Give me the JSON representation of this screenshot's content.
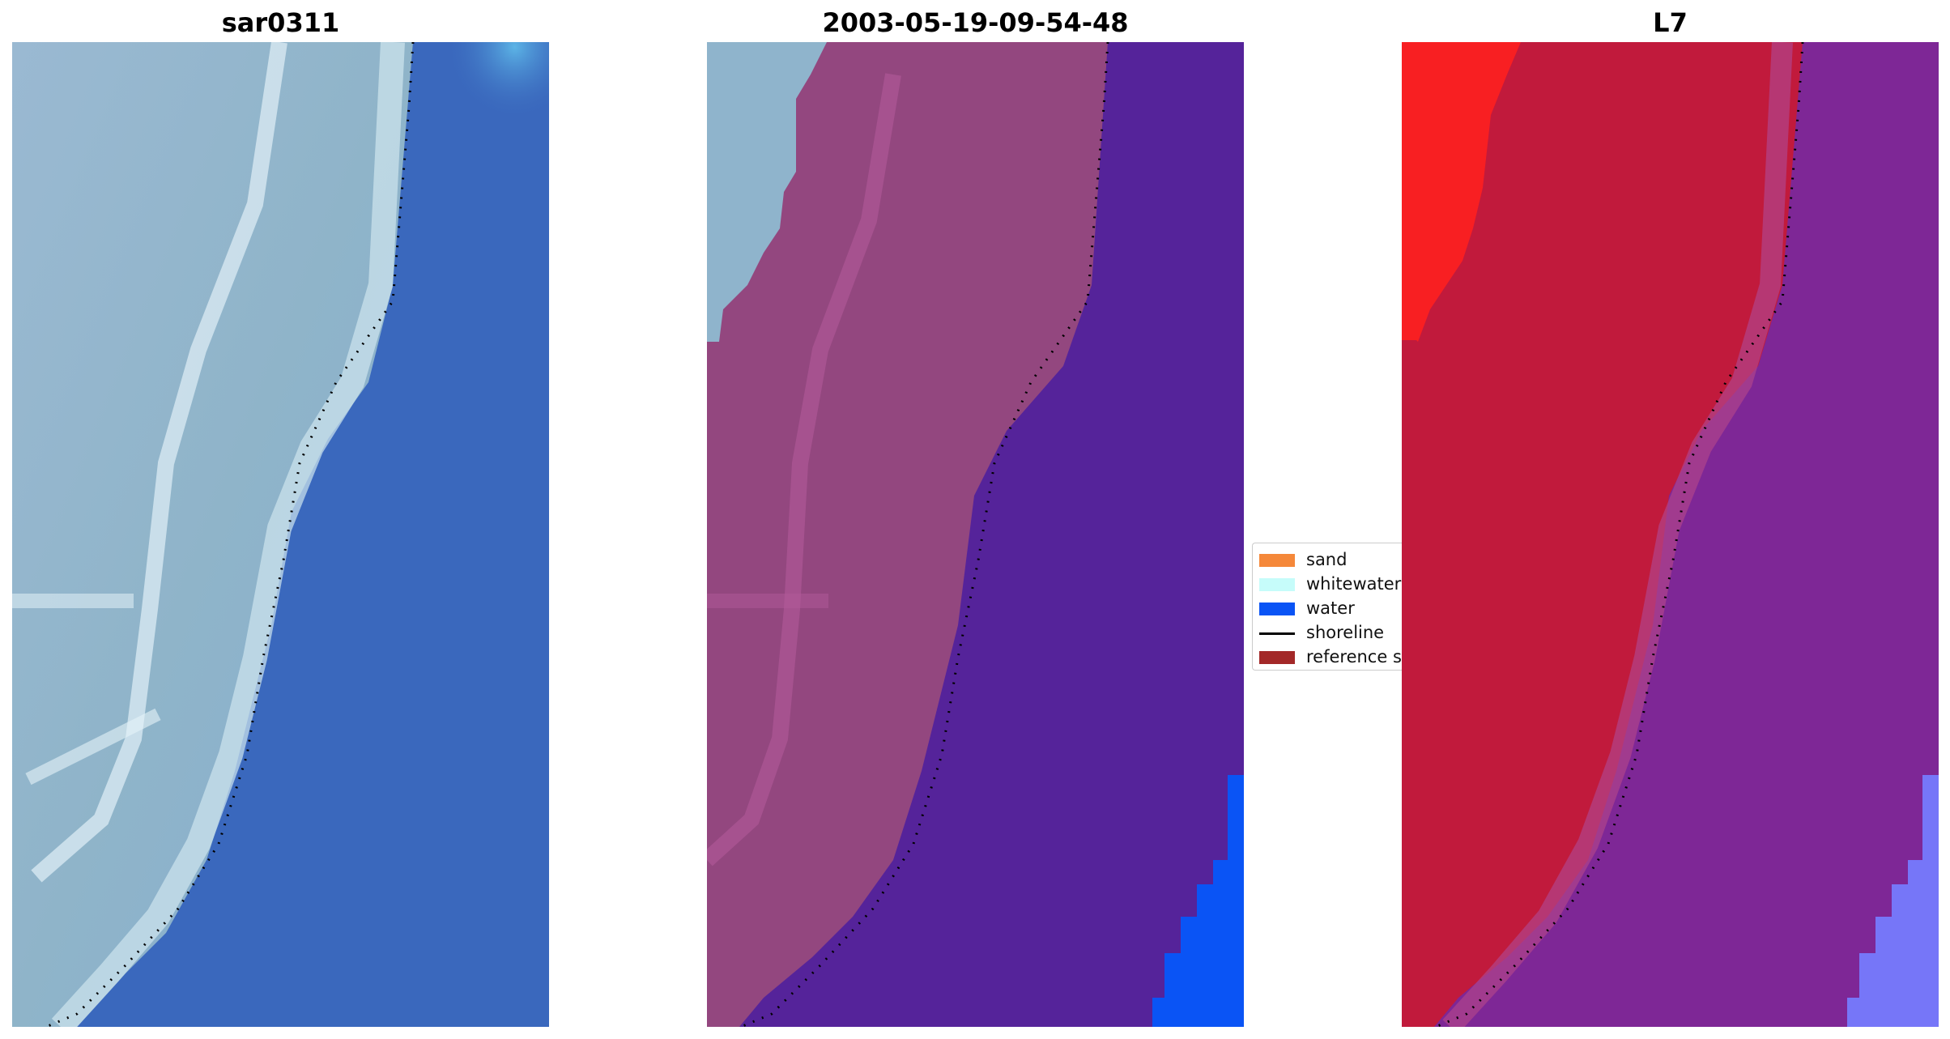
{
  "panels": [
    {
      "title": "sar0311",
      "kind": "rgb"
    },
    {
      "title": "2003-05-19-09-54-48",
      "kind": "classified"
    },
    {
      "title": "L7",
      "kind": "index"
    }
  ],
  "legend": {
    "items": [
      {
        "label": "sand",
        "color": "#f5883a",
        "kind": "patch"
      },
      {
        "label": "whitewater",
        "color": "#c6fcfa",
        "kind": "patch"
      },
      {
        "label": "water",
        "color": "#0a54f5",
        "kind": "patch"
      },
      {
        "label": "shoreline",
        "color": "#000000",
        "kind": "line"
      },
      {
        "label": "reference s",
        "color": "#a32828",
        "kind": "patch"
      }
    ]
  },
  "colors": {
    "rgb_land": "#8fb4cc",
    "rgb_water": "#3a68bd",
    "rgb_surf": "#d6ecf2",
    "rgb_deep_corner": "#5aaee0",
    "class_land_rgb": "#8fb4cc",
    "class_land_overlay": "#93477f",
    "class_water_overlay": "#55239a",
    "class_water_class": "#0a54f5",
    "index_land": "#c11a3c",
    "index_sand_bright": "#f81f22",
    "index_water": "#7e2796",
    "index_lightwater": "#7676f8",
    "shoreline": "#000000"
  }
}
